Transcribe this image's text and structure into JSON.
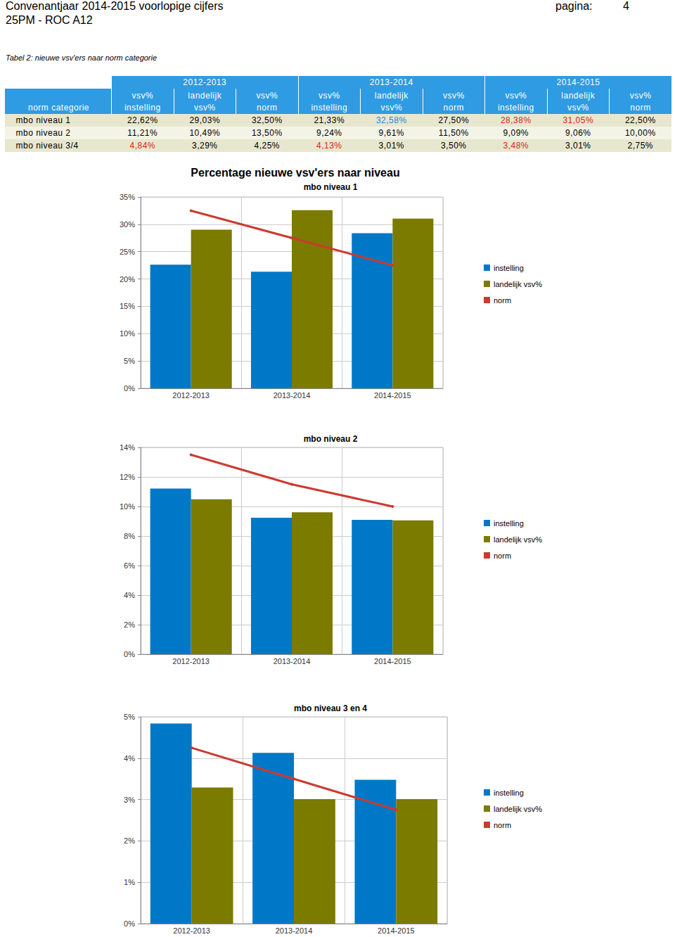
{
  "header": {
    "title": "Convenantjaar 2014-2015 voorlopige cijfers",
    "subtitle": "25PM - ROC A12",
    "page_label": "pagina:",
    "page": "4"
  },
  "caption": "Tabel 2: nieuwe vsv'ers naar norm categorie",
  "table": {
    "years": [
      "2012-2013",
      "2013-2014",
      "2014-2015"
    ],
    "first_header": "norm categorie",
    "column_headers": [
      [
        "vsv%",
        "instelling"
      ],
      [
        "landelijk",
        "vsv%"
      ],
      [
        "vsv%",
        "norm"
      ]
    ],
    "rows": [
      [
        "mbo niveau 1",
        "22,62%",
        "29,03%",
        "32,50%",
        "21,33%",
        {
          "text": "32,58%",
          "color": "blue"
        },
        "27,50%",
        {
          "text": "28,38%",
          "color": "red"
        },
        {
          "text": "31,05%",
          "color": "red"
        },
        "22,50%"
      ],
      [
        "mbo niveau 2",
        "11,21%",
        "10,49%",
        "13,50%",
        "9,24%",
        "9,61%",
        "11,50%",
        "9,09%",
        "9,06%",
        "10,00%"
      ],
      [
        "mbo niveau 3/4",
        {
          "text": "4,84%",
          "color": "red"
        },
        "3,29%",
        "4,25%",
        {
          "text": "4,13%",
          "color": "red"
        },
        "3,01%",
        "3,50%",
        {
          "text": "3,48%",
          "color": "red"
        },
        "3,01%",
        "2,75%"
      ]
    ]
  },
  "chart_data": [
    {
      "type": "bar",
      "title": "Percentage nieuwe vsv'ers naar niveau",
      "subtitle": "mbo niveau 1",
      "categories": [
        "2012-2013",
        "2013-2014",
        "2014-2015"
      ],
      "series": [
        {
          "name": "instelling",
          "type": "bar",
          "color": "#0078c8",
          "values": [
            22.62,
            21.33,
            28.38
          ]
        },
        {
          "name": "landelijk vsv%",
          "type": "bar",
          "color": "#7b7b00",
          "values": [
            29.03,
            32.58,
            31.05
          ]
        },
        {
          "name": "norm",
          "type": "line",
          "color": "#cc3a2e",
          "marker": "circle",
          "values": [
            32.5,
            27.5,
            22.5
          ]
        }
      ],
      "ylim": [
        0,
        35
      ],
      "yticks": [
        {
          "value": 0,
          "label": "0%"
        },
        {
          "value": 5,
          "label": "5%"
        },
        {
          "value": 10,
          "label": "10%"
        },
        {
          "value": 15,
          "label": "15%"
        },
        {
          "value": 20,
          "label": "20%"
        },
        {
          "value": 25,
          "label": "25%"
        },
        {
          "value": 30,
          "label": "30%"
        },
        {
          "value": 35,
          "label": "35%"
        }
      ],
      "grid": true,
      "legend": "right"
    },
    {
      "type": "bar",
      "title": "mbo niveau 2",
      "categories": [
        "2012-2013",
        "2013-2014",
        "2014-2015"
      ],
      "series": [
        {
          "name": "instelling",
          "type": "bar",
          "color": "#0078c8",
          "values": [
            11.21,
            9.24,
            9.09
          ]
        },
        {
          "name": "landelijk vsv%",
          "type": "bar",
          "color": "#7b7b00",
          "values": [
            10.49,
            9.61,
            9.06
          ]
        },
        {
          "name": "norm",
          "type": "line",
          "color": "#cc3a2e",
          "marker": "circle",
          "values": [
            13.5,
            11.5,
            10.0
          ]
        }
      ],
      "ylim": [
        0,
        14
      ],
      "yticks": [
        {
          "value": 0,
          "label": "0%"
        },
        {
          "value": 2,
          "label": "2%"
        },
        {
          "value": 4,
          "label": "4%"
        },
        {
          "value": 6,
          "label": "6%"
        },
        {
          "value": 8,
          "label": "8%"
        },
        {
          "value": 10,
          "label": "10%"
        },
        {
          "value": 12,
          "label": "12%"
        },
        {
          "value": 14,
          "label": "14%"
        }
      ],
      "grid": true,
      "legend": "right"
    },
    {
      "type": "bar",
      "title": "mbo niveau 3 en 4",
      "categories": [
        "2012-2013",
        "2013-2014",
        "2014-2015"
      ],
      "series": [
        {
          "name": "instelling",
          "type": "bar",
          "color": "#0078c8",
          "values": [
            4.84,
            4.13,
            3.48
          ]
        },
        {
          "name": "landelijk vsv%",
          "type": "bar",
          "color": "#7b7b00",
          "values": [
            3.29,
            3.01,
            3.01
          ]
        },
        {
          "name": "norm",
          "type": "line",
          "color": "#cc3a2e",
          "marker": "circle",
          "values": [
            4.25,
            3.5,
            2.75
          ]
        }
      ],
      "ylim": [
        0,
        5
      ],
      "yticks": [
        {
          "value": 0,
          "label": "0%"
        },
        {
          "value": 1,
          "label": "1%"
        },
        {
          "value": 2,
          "label": "2%"
        },
        {
          "value": 3,
          "label": "3%"
        },
        {
          "value": 4,
          "label": "4%"
        },
        {
          "value": 5,
          "label": "5%"
        }
      ],
      "grid": true,
      "legend": "right"
    }
  ]
}
